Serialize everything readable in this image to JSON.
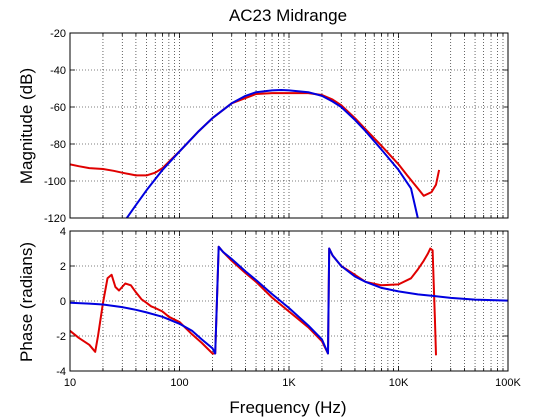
{
  "chart_data": {
    "type": "line",
    "title": "AC23 Midrange",
    "xlabel": "Frequency (Hz)",
    "x_scale": "log",
    "xlim": [
      10,
      100000
    ],
    "x_tick_labels": [
      "10",
      "100",
      "1K",
      "10K",
      "100K"
    ],
    "grid": true,
    "colors": {
      "measured": "#e00000",
      "model": "#0000e0"
    },
    "magnitude": {
      "ylabel": "Magnitude (dB)",
      "ylim": [
        -120,
        -20
      ],
      "y_tick_labels": [
        "-20",
        "-40",
        "-60",
        "-80",
        "-100",
        "-120"
      ],
      "series": [
        {
          "color": "#e00000",
          "x": [
            10,
            12,
            15,
            20,
            25,
            30,
            40,
            50,
            60,
            70,
            100,
            150,
            200,
            300,
            500,
            700,
            1000,
            1500,
            2000,
            2500,
            3000,
            4000,
            5000,
            7000,
            10000,
            12000,
            15000,
            17000,
            20000,
            22000,
            23500
          ],
          "y": [
            -91,
            -92,
            -93,
            -93.5,
            -94.5,
            -95.5,
            -97,
            -97,
            -95.5,
            -93,
            -84,
            -73,
            -66,
            -58,
            -53,
            -52.5,
            -52.5,
            -52.5,
            -53.5,
            -56,
            -59,
            -66,
            -72,
            -81,
            -91,
            -97,
            -104,
            -108,
            -106,
            -102,
            -94
          ]
        },
        {
          "color": "#0000e0",
          "x": [
            33,
            40,
            50,
            70,
            100,
            150,
            200,
            300,
            400,
            500,
            700,
            850,
            1000,
            1500,
            2000,
            2500,
            3000,
            4000,
            5000,
            7000,
            10000,
            13000,
            15000
          ],
          "y": [
            -120,
            -113,
            -105,
            -94,
            -84,
            -73,
            -66,
            -58,
            -54,
            -52,
            -51,
            -50.8,
            -51,
            -52,
            -54,
            -57,
            -60,
            -67,
            -73,
            -83,
            -94,
            -104,
            -120
          ]
        }
      ]
    },
    "phase": {
      "ylabel": "Phase (radians)",
      "ylim": [
        -4,
        4
      ],
      "y_tick_labels": [
        "4",
        "2",
        "0",
        "-2",
        "-4"
      ],
      "series": [
        {
          "color": "#e00000",
          "x": [
            10,
            12,
            15,
            17,
            18,
            20,
            22,
            24,
            26,
            28,
            32,
            36,
            40,
            45,
            50,
            55,
            60,
            70,
            80,
            100,
            130,
            160,
            200,
            212,
            228,
            250,
            300,
            400,
            500,
            700,
            1000,
            1500,
            2000,
            2270,
            2330,
            2500,
            3000,
            4000,
            5000,
            7000,
            10000,
            13000,
            15000,
            17000,
            18500,
            19500,
            20500,
            21500,
            22000
          ],
          "y": [
            -1.7,
            -2.1,
            -2.5,
            -2.9,
            -2.0,
            -0.1,
            1.3,
            1.5,
            0.8,
            0.6,
            1.0,
            0.9,
            0.5,
            0.1,
            -0.1,
            -0.3,
            -0.4,
            -0.6,
            -0.9,
            -1.2,
            -1.9,
            -2.4,
            -3.0,
            -3.0,
            3.1,
            2.8,
            2.3,
            1.6,
            1.1,
            0.2,
            -0.6,
            -1.5,
            -2.3,
            -3.0,
            3.0,
            2.6,
            2.0,
            1.5,
            1.1,
            0.9,
            0.95,
            1.3,
            1.8,
            2.3,
            2.7,
            3.0,
            2.9,
            -1.0,
            -3.1
          ]
        },
        {
          "color": "#0000e0",
          "x": [
            10,
            15,
            20,
            30,
            40,
            50,
            70,
            100,
            130,
            160,
            200,
            212,
            228,
            250,
            300,
            400,
            500,
            700,
            1000,
            1500,
            2000,
            2270,
            2330,
            2500,
            3000,
            4000,
            5000,
            7000,
            10000,
            15000,
            20000,
            30000,
            50000,
            100000
          ],
          "y": [
            -0.1,
            -0.15,
            -0.2,
            -0.35,
            -0.5,
            -0.65,
            -0.9,
            -1.3,
            -1.7,
            -2.2,
            -2.7,
            -3.0,
            3.1,
            2.8,
            2.4,
            1.7,
            1.2,
            0.4,
            -0.4,
            -1.4,
            -2.2,
            -3.0,
            3.0,
            2.6,
            2.0,
            1.4,
            1.1,
            0.75,
            0.55,
            0.38,
            0.3,
            0.18,
            0.08,
            0.02
          ]
        }
      ]
    }
  }
}
